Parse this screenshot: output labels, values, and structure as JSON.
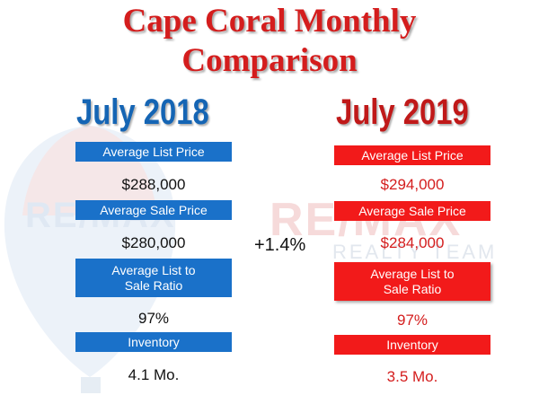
{
  "title": {
    "line1": "Cape Coral Monthly",
    "line2": "Comparison"
  },
  "left": {
    "year": "July 2018",
    "avg_list_label": "Average List Price",
    "avg_list_value": "$288,000",
    "avg_sale_label": "Average Sale Price",
    "avg_sale_value": "$280,000",
    "ratio_label_1": "Average List to",
    "ratio_label_2": "Sale Ratio",
    "ratio_value": "97%",
    "inventory_label": "Inventory",
    "inventory_value": "4.1 Mo."
  },
  "right": {
    "year": "July 2019",
    "avg_list_label": "Average List Price",
    "avg_list_value": "$294,000",
    "avg_sale_label": "Average Sale Price",
    "avg_sale_value": "$284,000",
    "ratio_label_1": "Average List to",
    "ratio_label_2": "Sale Ratio",
    "ratio_value": "97%",
    "inventory_label": "Inventory",
    "inventory_value": "3.5 Mo."
  },
  "change": "+1.4%",
  "watermark": {
    "brand": "RE/MAX",
    "team": "REALTY TEAM"
  },
  "colors": {
    "title": "#d41d1d",
    "blue": "#1a71c9",
    "red": "#f21a1a"
  }
}
